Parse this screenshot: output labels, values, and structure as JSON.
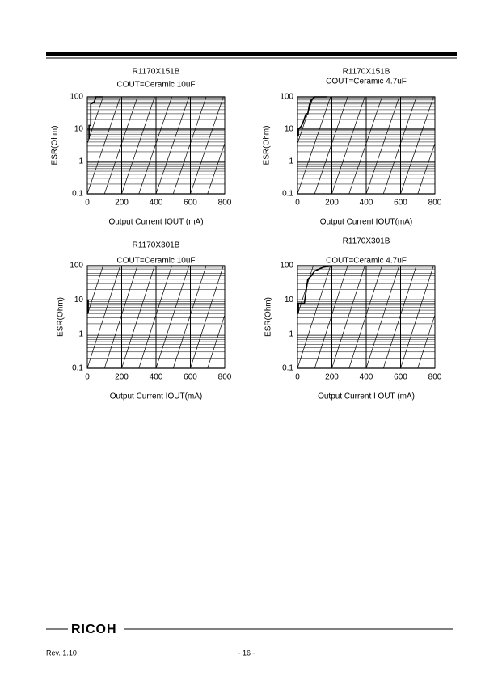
{
  "chart_data": [
    {
      "type": "line",
      "title": "R1170X151B",
      "annotation": "COUT=Ceramic 10uF",
      "xlabel": "Output Current IOUT (mA)",
      "ylabel": "ESR(Ohm)",
      "x": [
        10,
        10,
        20,
        20,
        40,
        50,
        90
      ],
      "values": [
        5,
        13,
        13,
        60,
        70,
        100,
        100
      ],
      "color": "#000000",
      "xlim": [
        0,
        800
      ],
      "ylim": [
        0.1,
        100
      ],
      "xticks": [
        0,
        200,
        400,
        600,
        800
      ],
      "yticks": [
        0.1,
        1,
        10,
        100
      ],
      "log_y": true,
      "grid": true
    },
    {
      "type": "line",
      "title": "R1170X151B",
      "annotation": "COUT=Ceramic 4.7uF",
      "xlabel": "Output Current IOUT(mA)",
      "ylabel": "ESR(Ohm)",
      "x": [
        5,
        5,
        20,
        30,
        50,
        60,
        70,
        80,
        100,
        170
      ],
      "values": [
        6,
        10,
        12,
        15,
        30,
        30,
        60,
        80,
        100,
        100
      ],
      "color": "#000000",
      "xlim": [
        0,
        800
      ],
      "ylim": [
        0.1,
        100
      ],
      "xticks": [
        0,
        200,
        400,
        600,
        800
      ],
      "yticks": [
        0.1,
        1,
        10,
        100
      ],
      "log_y": true,
      "grid": true
    },
    {
      "type": "line",
      "title": "R1170X301B",
      "annotation": "COUT=Ceramic 10uF",
      "xlabel": "Output Current IOUT(mA)",
      "ylabel": "ESR(Ohm)",
      "x": [
        5,
        5
      ],
      "values": [
        4,
        10
      ],
      "color": "#000000",
      "xlim": [
        0,
        800
      ],
      "ylim": [
        0.1,
        100
      ],
      "xticks": [
        0,
        200,
        400,
        600,
        800
      ],
      "yticks": [
        0.1,
        1,
        10,
        100
      ],
      "log_y": true,
      "grid": true
    },
    {
      "type": "line",
      "title": "R1170X301B",
      "annotation": "COUT=Ceramic 4.7uF",
      "xlabel": "Output Current I OUT (mA)",
      "ylabel": "ESR(Ohm)",
      "x": [
        5,
        5,
        20,
        40,
        60,
        80,
        100,
        150,
        200
      ],
      "values": [
        4,
        8,
        8,
        8,
        40,
        50,
        70,
        90,
        100
      ],
      "color": "#000000",
      "xlim": [
        0,
        800
      ],
      "ylim": [
        0.1,
        100
      ],
      "xticks": [
        0,
        200,
        400,
        600,
        800
      ],
      "yticks": [
        0.1,
        1,
        10,
        100
      ],
      "log_y": true,
      "grid": true
    }
  ],
  "footer": {
    "logo": "RICOH",
    "revision": "Rev. 1.10",
    "page": "- 16 -"
  }
}
